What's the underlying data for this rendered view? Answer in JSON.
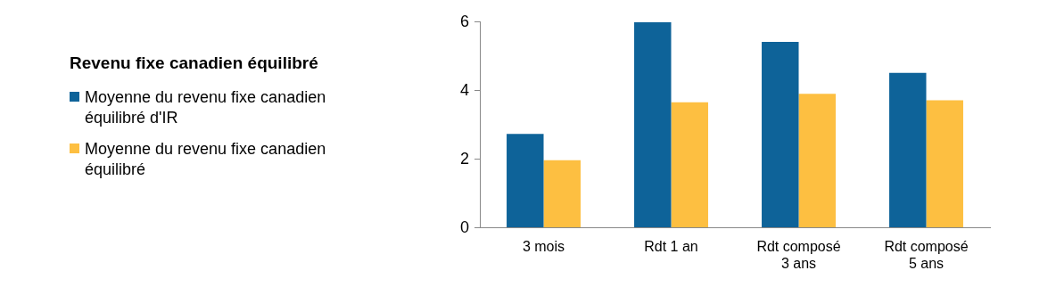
{
  "chart_data": {
    "type": "bar",
    "title": "Revenu fixe canadien équilibré",
    "categories": [
      "3 mois",
      "Rdt 1 an",
      "Rdt composé 3 ans",
      "Rdt composé 5 ans"
    ],
    "series": [
      {
        "name": "Moyenne du revenu fixe canadien équilibré d'IR",
        "color": "#0e6399",
        "values": [
          2.74,
          6.0,
          5.42,
          4.52
        ]
      },
      {
        "name": "Moyenne du revenu fixe canadien équilibré",
        "color": "#fdbf41",
        "values": [
          1.97,
          3.66,
          3.91,
          3.72
        ]
      }
    ],
    "ylim": [
      0,
      6
    ],
    "yticks": [
      0,
      2,
      4,
      6
    ],
    "grid": false,
    "legend": "left"
  }
}
